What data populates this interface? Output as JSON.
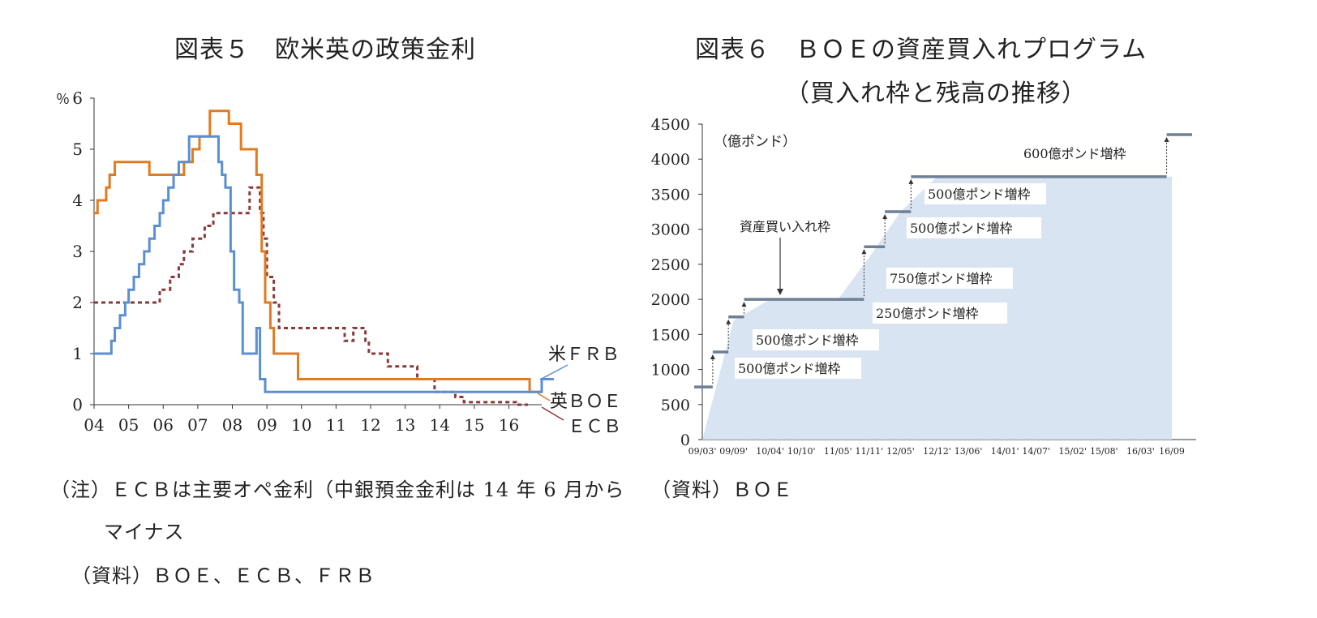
{
  "left": {
    "title": "図表５　欧米英の政策金利",
    "notes": [
      "（注）ＥＣＢは主要オペ金利（中銀預金金利は 14 年 6 月から",
      "マイナス",
      "（資料）ＢＯＥ、ＥＣＢ、ＦＲＢ"
    ]
  },
  "right": {
    "title_line1": "図表６　ＢＯＥの資産買入れプログラム",
    "title_line2": "（買入れ枠と残高の推移）",
    "source": "（資料）ＢＯＥ"
  },
  "chart_data": [
    {
      "type": "line",
      "title": "図表５　欧米英の政策金利",
      "ylabel": "％",
      "ylim": [
        0,
        6
      ],
      "xlim": [
        2004,
        2016.95
      ],
      "yticks": [
        "0",
        "1",
        "2",
        "3",
        "4",
        "5",
        "6"
      ],
      "xticks": [
        "04",
        "05",
        "06",
        "07",
        "08",
        "09",
        "10",
        "11",
        "12",
        "13",
        "14",
        "15",
        "16"
      ],
      "series": [
        {
          "name": "米ＦＲＢ",
          "color": "#5b8fd0",
          "style": "solid",
          "x": [
            2004.0,
            2004.5,
            2004.6,
            2004.75,
            2004.9,
            2005.0,
            2005.15,
            2005.3,
            2005.45,
            2005.6,
            2005.75,
            2005.9,
            2006.0,
            2006.15,
            2006.3,
            2006.45,
            2006.75,
            2007.6,
            2007.7,
            2007.8,
            2007.95,
            2008.05,
            2008.2,
            2008.3,
            2008.7,
            2008.8,
            2008.95,
            2016.95
          ],
          "y": [
            1.0,
            1.25,
            1.5,
            1.75,
            2.0,
            2.25,
            2.5,
            2.75,
            3.0,
            3.25,
            3.5,
            3.75,
            4.0,
            4.25,
            4.5,
            4.75,
            5.25,
            4.75,
            4.5,
            4.25,
            3.0,
            2.25,
            2.0,
            1.0,
            1.5,
            0.5,
            0.25,
            0.5
          ]
        },
        {
          "name": "英ＢＯＥ",
          "color": "#e07b20",
          "style": "solid",
          "x": [
            2004.0,
            2004.1,
            2004.35,
            2004.45,
            2004.6,
            2005.6,
            2006.6,
            2006.85,
            2007.05,
            2007.35,
            2007.9,
            2008.25,
            2008.7,
            2008.85,
            2008.95,
            2009.1,
            2009.2,
            2009.9,
            2010.0,
            2016.6
          ],
          "y": [
            3.75,
            4.0,
            4.25,
            4.5,
            4.75,
            4.5,
            4.75,
            5.0,
            5.25,
            5.75,
            5.5,
            5.0,
            4.5,
            3.0,
            2.0,
            1.5,
            1.0,
            0.5,
            0.5,
            0.25
          ]
        },
        {
          "name": "ＥＣＢ",
          "color": "#8b3a3a",
          "style": "dashed",
          "x": [
            2004.0,
            2005.9,
            2006.2,
            2006.45,
            2006.6,
            2006.85,
            2007.2,
            2007.45,
            2008.5,
            2008.8,
            2008.9,
            2009.0,
            2009.2,
            2009.35,
            2011.25,
            2011.5,
            2011.85,
            2011.95,
            2012.5,
            2013.35,
            2013.85,
            2014.45,
            2014.7,
            2016.2
          ],
          "y": [
            2.0,
            2.25,
            2.5,
            2.75,
            3.0,
            3.25,
            3.5,
            3.75,
            4.25,
            3.75,
            3.25,
            2.5,
            2.0,
            1.5,
            1.25,
            1.5,
            1.25,
            1.0,
            0.75,
            0.5,
            0.25,
            0.15,
            0.05,
            0.0
          ]
        }
      ],
      "legend": [
        "米ＦＲＢ",
        "英ＢＯＥ",
        "ＥＣＢ"
      ]
    },
    {
      "type": "area",
      "title": "図表６　ＢＯＥの資産買入れプログラム（買入れ枠と残高の推移）",
      "ylabel": "（億ポンド）",
      "ylim": [
        0,
        4500
      ],
      "yticks": [
        "0",
        "500",
        "1000",
        "1500",
        "2000",
        "2500",
        "3000",
        "3500",
        "4000",
        "4500"
      ],
      "xticks": [
        "09/03'",
        "09/09'",
        "10/04'",
        "10/10'",
        "11/05'",
        "11/11'",
        "12/05'",
        "12/12'",
        "13/06'",
        "14/01'",
        "14/07'",
        "15/02'",
        "15/08'",
        "16/03'",
        "16/09"
      ],
      "balance": {
        "x": [
          "09/03'",
          "09/09'",
          "10/04'",
          "10/10'",
          "11/05'",
          "11/11'",
          "12/05'",
          "12/12'",
          "13/06'",
          "14/01'",
          "14/07'",
          "15/02'",
          "15/08'",
          "16/03'",
          "16/09"
        ],
        "y": [
          0,
          1700,
          2000,
          2000,
          2000,
          2600,
          3250,
          3750,
          3750,
          3750,
          3750,
          3750,
          3750,
          3750,
          3750
        ]
      },
      "limits": [
        {
          "x": "09/03'",
          "y": 750
        },
        {
          "x": "09/05'",
          "y": 1250
        },
        {
          "x": "09/08'",
          "y": 1750
        },
        {
          "x": "09/11'",
          "y": 2000
        },
        {
          "x": "11/10'",
          "y": 2750
        },
        {
          "x": "12/02'",
          "y": 3250
        },
        {
          "x": "12/07'",
          "y": 3750
        },
        {
          "x": "16/08'",
          "y": 4350
        }
      ],
      "annotations": [
        "500億ポンド増枠",
        "500億ポンド増枠",
        "250億ポンド増枠",
        "750億ポンド増枠",
        "500億ポンド増枠",
        "500億ポンド増枠",
        "600億ポンド増枠",
        "資産買い入れ枠"
      ]
    }
  ]
}
